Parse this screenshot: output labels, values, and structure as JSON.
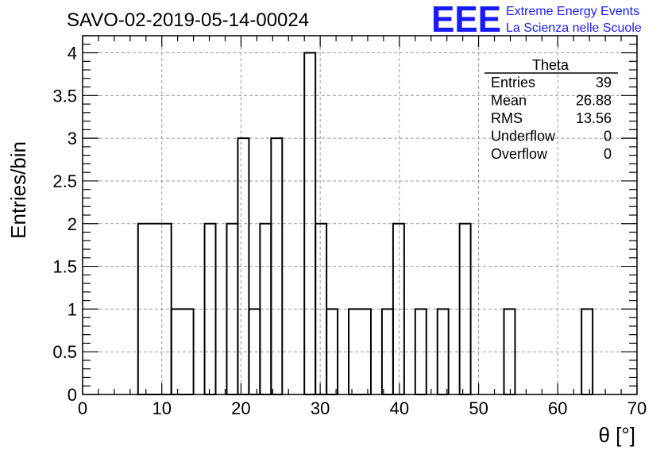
{
  "header": {
    "title": "SAVO-02-2019-05-14-00024",
    "logo_mark": "EEE",
    "logo_line1": "Extreme Energy Events",
    "logo_line2": "La Scienza nelle Scuole",
    "logo_color": "#1a1aff"
  },
  "stats": {
    "name": "Theta",
    "rows": [
      {
        "label": "Entries",
        "value": "39"
      },
      {
        "label": "Mean",
        "value": "26.88"
      },
      {
        "label": "RMS",
        "value": "13.56"
      },
      {
        "label": "Underflow",
        "value": "0"
      },
      {
        "label": "Overflow",
        "value": "0"
      }
    ]
  },
  "chart_data": {
    "type": "bar",
    "histogram": true,
    "title": "SAVO-02-2019-05-14-00024",
    "xlabel": "θ [°]",
    "ylabel": "Entries/bin",
    "xlim": [
      0,
      70
    ],
    "ylim": [
      0,
      4.2
    ],
    "grid": true,
    "bin_width": 1.4,
    "bins": [
      {
        "x0": 7.0,
        "x1": 11.2,
        "value": 2
      },
      {
        "x0": 11.2,
        "x1": 14.0,
        "value": 1
      },
      {
        "x0": 15.4,
        "x1": 16.8,
        "value": 2
      },
      {
        "x0": 18.2,
        "x1": 19.6,
        "value": 2
      },
      {
        "x0": 19.6,
        "x1": 21.0,
        "value": 3
      },
      {
        "x0": 21.0,
        "x1": 22.4,
        "value": 1
      },
      {
        "x0": 22.4,
        "x1": 23.8,
        "value": 2
      },
      {
        "x0": 23.8,
        "x1": 25.2,
        "value": 3
      },
      {
        "x0": 28.0,
        "x1": 29.4,
        "value": 4
      },
      {
        "x0": 29.4,
        "x1": 30.8,
        "value": 2
      },
      {
        "x0": 30.8,
        "x1": 32.2,
        "value": 1
      },
      {
        "x0": 33.6,
        "x1": 36.4,
        "value": 1
      },
      {
        "x0": 37.8,
        "x1": 39.2,
        "value": 1
      },
      {
        "x0": 39.2,
        "x1": 40.6,
        "value": 2
      },
      {
        "x0": 42.0,
        "x1": 43.4,
        "value": 1
      },
      {
        "x0": 44.8,
        "x1": 46.2,
        "value": 1
      },
      {
        "x0": 47.6,
        "x1": 49.0,
        "value": 2
      },
      {
        "x0": 53.2,
        "x1": 54.6,
        "value": 1
      },
      {
        "x0": 63.0,
        "x1": 64.4,
        "value": 1
      }
    ],
    "x_major_ticks": [
      0,
      10,
      20,
      30,
      40,
      50,
      60,
      70
    ],
    "x_tick_labels": [
      "0",
      "10",
      "20",
      "30",
      "40",
      "50",
      "60",
      "70"
    ],
    "y_major_ticks": [
      0,
      0.5,
      1,
      1.5,
      2,
      2.5,
      3,
      3.5,
      4
    ],
    "y_tick_labels": [
      "0",
      "0.5",
      "1",
      "1.5",
      "2",
      "2.5",
      "3",
      "3.5",
      "4"
    ]
  }
}
